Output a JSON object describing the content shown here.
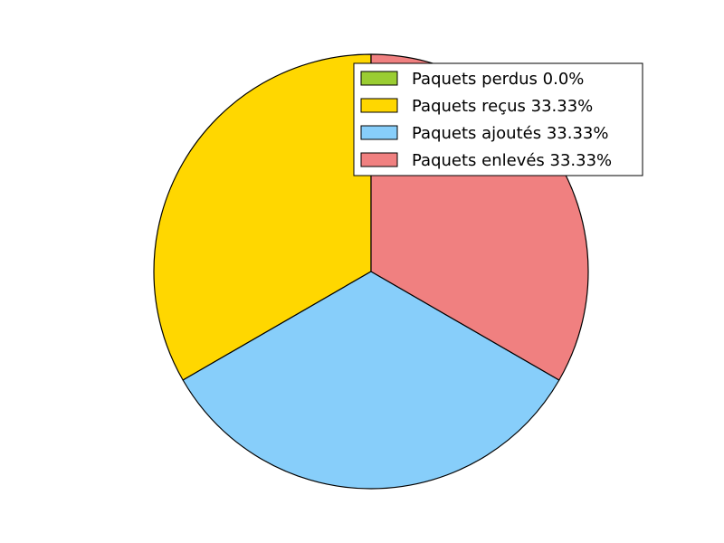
{
  "chart_data": {
    "type": "pie",
    "title": "",
    "start_angle": 90,
    "direction": "counterclockwise",
    "legend_position": "top-right",
    "slices": [
      {
        "label": "Paquets perdus",
        "value": 0.0,
        "color": "#9ACD32",
        "legend_text": "Paquets perdus 0.0%"
      },
      {
        "label": "Paquets reçus",
        "value": 33.33,
        "color": "#FFD700",
        "legend_text": "Paquets reçus 33.33%"
      },
      {
        "label": "Paquets ajoutés",
        "value": 33.33,
        "color": "#87CEFA",
        "legend_text": "Paquets ajoutés 33.33%"
      },
      {
        "label": "Paquets enlevés",
        "value": 33.33,
        "color": "#F08080",
        "legend_text": "Paquets enlevés 33.33%"
      }
    ]
  }
}
